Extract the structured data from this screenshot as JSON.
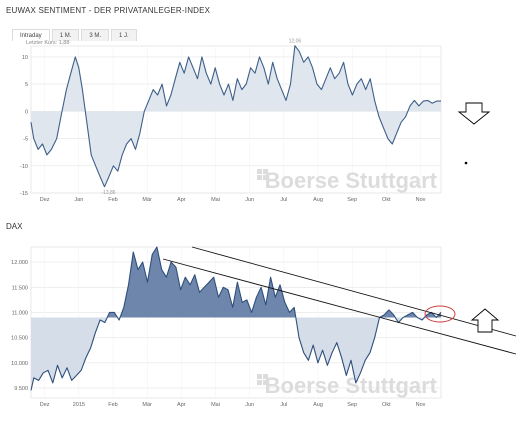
{
  "header": {
    "title": "EUWAX SENTIMENT - DER PRIVATANLEGER-INDEX"
  },
  "tabs": [
    {
      "label": "Intraday",
      "active": true
    },
    {
      "label": "1 M.",
      "active": false
    },
    {
      "label": "3 M.",
      "active": false
    },
    {
      "label": "1 J.",
      "active": false
    }
  ],
  "last_price_label": "Letzter Kurs: 1,88",
  "dax_label": "DAX",
  "watermark": "Boerse Stuttgart",
  "colors": {
    "sentiment_line": "#3e5f8a",
    "sentiment_fill": "#dfe6ee",
    "dax_line": "#2f4f7c",
    "dax_fill_above": "#6e86ab",
    "dax_fill_below": "#d4dde8",
    "arrow": "#000000",
    "highlight_ellipse": "#d04040"
  },
  "icons": {
    "down_arrow": "down-arrow-icon",
    "up_arrow": "up-arrow-icon",
    "watermark_logo": "boerse-stuttgart-logo-icon"
  },
  "chart_data": [
    {
      "type": "line",
      "fill": "area-to-zero",
      "x_tick_labels": [
        "Dez",
        "Jan",
        "Feb",
        "Mär",
        "Apr",
        "Mai",
        "Jun",
        "Jul",
        "Aug",
        "Sep",
        "Okt",
        "Nov"
      ],
      "y_tick_labels": [
        "10",
        "5",
        "0",
        "-5",
        "-10",
        "-15"
      ],
      "ylim": [
        -15,
        12
      ],
      "grid": true,
      "annotations": {
        "max_label": "12,06",
        "min_label": "-13,86"
      },
      "t": [
        0,
        0.3,
        0.8,
        1.3,
        1.8,
        2.3,
        2.9,
        3.5,
        4.0,
        4.5,
        5.0,
        5.4,
        5.8,
        6.3,
        6.8,
        7.3,
        7.8,
        8.3,
        8.8,
        9.3,
        9.8,
        10.3,
        10.8,
        11.3,
        11.8,
        12.3,
        12.8,
        13.3,
        13.8,
        14.3,
        14.8,
        15.3,
        15.8,
        16.3,
        16.8,
        17.3,
        17.8,
        18.3,
        18.8,
        19.3,
        19.8,
        20.3,
        20.8,
        21.3,
        21.8,
        22.3,
        22.8,
        23.3,
        23.8,
        24.3,
        24.8,
        25.3,
        25.8,
        26.3,
        26.8,
        27.3,
        27.8,
        28.3,
        28.8,
        29.3,
        29.8,
        30.3,
        30.8,
        31.3,
        31.8,
        32.3,
        32.8,
        33.3,
        33.8,
        34.3,
        34.8,
        35.3,
        35.8,
        36.3,
        36.8,
        37.3,
        37.8,
        38.3,
        38.8,
        39.3,
        39.8,
        40.3,
        40.8,
        41.3,
        41.8,
        42.3,
        42.8,
        43.3,
        43.8,
        44.3,
        44.8,
        45.3,
        45.8,
        46.3
      ],
      "values": [
        -2,
        -5,
        -7,
        -6,
        -8,
        -7,
        -5,
        0,
        4,
        7,
        10,
        8,
        4,
        -2,
        -8,
        -10,
        -12,
        -13.86,
        -12,
        -10,
        -11,
        -8,
        -6,
        -5,
        -7,
        -4,
        0,
        2,
        4,
        3,
        5,
        1,
        3,
        6,
        9,
        7,
        10,
        8,
        6,
        10,
        7,
        5,
        8,
        5,
        3,
        5,
        2,
        6,
        4,
        5,
        8,
        7,
        10,
        8,
        5,
        9,
        6,
        4,
        2,
        5,
        12.06,
        11,
        9,
        10,
        8,
        5,
        4,
        6,
        8,
        6,
        7,
        9,
        5,
        3,
        5,
        6,
        4,
        6,
        2,
        -1,
        -3,
        -5,
        -6,
        -4,
        -2,
        -1,
        1,
        2,
        1,
        1.88,
        2,
        1.5,
        1.88,
        1.88
      ]
    },
    {
      "type": "line",
      "fill": "area-to-baseline",
      "baseline": 10900,
      "x_tick_labels": [
        "Dez",
        "2015",
        "Feb",
        "Mär",
        "Apr",
        "Mai",
        "Jun",
        "Jul",
        "Aug",
        "Sep",
        "Okt",
        "Nov"
      ],
      "y_tick_labels": [
        "12.000",
        "11.500",
        "11.000",
        "10.500",
        "10.000",
        "9.500"
      ],
      "ylim": [
        9300,
        12300
      ],
      "grid": true,
      "trend_lines": 2,
      "t": [
        0,
        0.3,
        0.8,
        1.3,
        1.8,
        2.3,
        2.8,
        3.3,
        3.8,
        4.3,
        4.8,
        5.3,
        5.8,
        6.3,
        6.8,
        7.3,
        7.8,
        8.3,
        8.8,
        9.3,
        9.8,
        10.3,
        10.8,
        11.3,
        11.8,
        12.3,
        12.8,
        13.3,
        13.8,
        14.3,
        14.8,
        15.3,
        15.8,
        16.3,
        16.8,
        17.3,
        17.8,
        18.3,
        18.8,
        19.3,
        19.8,
        20.3,
        20.8,
        21.3,
        21.8,
        22.3,
        22.8,
        23.3,
        23.8,
        24.3,
        24.8,
        25.3,
        25.8,
        26.3,
        26.8,
        27.3,
        27.8,
        28.3,
        28.8,
        29.3,
        29.8,
        30.3,
        30.8,
        31.3,
        31.8,
        32.3,
        32.8,
        33.3,
        33.8,
        34.3,
        34.8,
        35.3,
        35.8,
        36.3,
        36.8,
        37.3,
        37.8,
        38.3,
        38.8,
        39.3,
        39.8,
        40.3,
        40.8,
        41.3,
        41.8,
        42.3,
        42.8,
        43.3
      ],
      "values": [
        9450,
        9700,
        9650,
        9800,
        9850,
        9600,
        9950,
        9700,
        9900,
        9650,
        9750,
        9850,
        10100,
        10300,
        10600,
        10850,
        10800,
        11000,
        11000,
        10850,
        11100,
        11550,
        12200,
        11850,
        12000,
        11600,
        12150,
        12300,
        11850,
        11700,
        12000,
        11900,
        11450,
        11700,
        11550,
        11750,
        11400,
        11500,
        11600,
        11700,
        11300,
        11500,
        11450,
        11100,
        11600,
        11200,
        11250,
        11000,
        11300,
        11500,
        11150,
        11700,
        11300,
        11550,
        11200,
        11000,
        11100,
        10500,
        10200,
        10050,
        10350,
        10000,
        10250,
        9950,
        10200,
        10400,
        10100,
        9750,
        10050,
        9600,
        9800,
        10050,
        10200,
        10500,
        10900,
        10950,
        11050,
        10950,
        10800,
        10900,
        10950,
        11000,
        10900,
        10850,
        10950,
        11000,
        10900,
        11000
      ]
    }
  ]
}
